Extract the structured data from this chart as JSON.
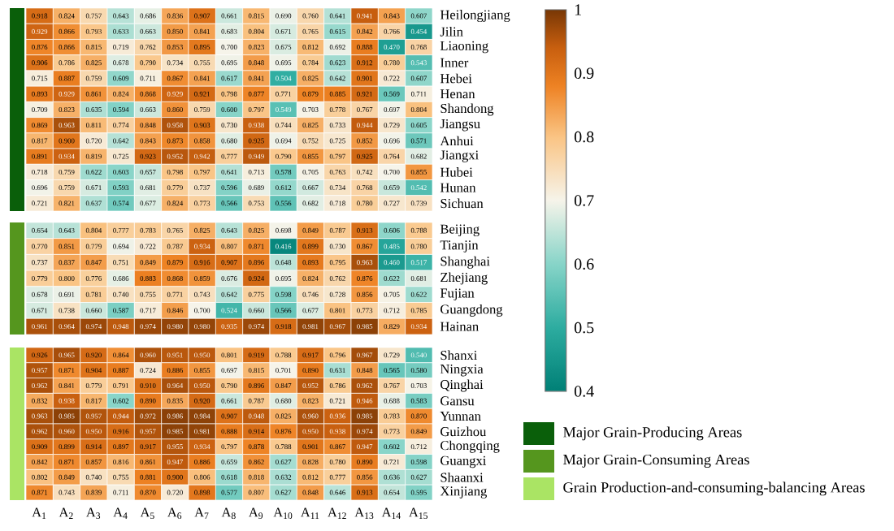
{
  "chart_data": [
    {
      "type": "heatmap",
      "categories": [
        null,
        null,
        null,
        null,
        null,
        null,
        null,
        null,
        null,
        null,
        null,
        null,
        null,
        null,
        null
      ],
      "y_categories": [
        "Heilongjiang",
        "Jilin",
        "Liaoning",
        "Inner",
        "Hebei",
        "Henan",
        "Shandong",
        "Jiangsu",
        "Anhui",
        "Jiangxi",
        "Hubei",
        "Hunan",
        "Sichuan"
      ],
      "cells": [
        [
          0.918,
          0.824,
          0.757,
          0.643,
          0.686,
          0.836,
          0.907,
          0.661,
          0.815,
          0.69,
          0.76,
          0.641,
          0.941,
          0.843,
          0.607
        ],
        [
          0.929,
          0.866,
          0.793,
          0.633,
          0.663,
          0.85,
          0.841,
          0.683,
          0.804,
          0.671,
          0.765,
          0.615,
          0.842,
          0.766,
          0.454
        ],
        [
          0.876,
          0.866,
          0.815,
          0.719,
          0.762,
          0.853,
          0.895,
          0.7,
          0.823,
          0.675,
          0.812,
          0.692,
          0.888,
          0.47,
          0.768
        ],
        [
          0.906,
          0.786,
          0.825,
          0.678,
          0.79,
          0.734,
          0.755,
          0.695,
          0.848,
          0.695,
          0.784,
          0.623,
          0.912,
          0.78,
          0.543
        ],
        [
          0.715,
          0.887,
          0.759,
          0.609,
          0.711,
          0.867,
          0.841,
          0.617,
          0.841,
          0.504,
          0.825,
          0.642,
          0.901,
          0.722,
          0.607
        ],
        [
          0.893,
          0.929,
          0.861,
          0.824,
          0.868,
          0.929,
          0.921,
          0.798,
          0.877,
          0.771,
          0.879,
          0.885,
          0.921,
          0.569,
          0.711
        ],
        [
          0.709,
          0.823,
          0.635,
          0.594,
          0.663,
          0.86,
          0.759,
          0.6,
          0.797,
          0.549,
          0.703,
          0.778,
          0.767,
          0.697,
          0.804
        ],
        [
          0.869,
          0.963,
          0.811,
          0.774,
          0.848,
          0.958,
          0.903,
          0.73,
          0.938,
          0.744,
          0.825,
          0.733,
          0.944,
          0.729,
          0.605
        ],
        [
          0.817,
          0.9,
          0.72,
          0.642,
          0.843,
          0.873,
          0.858,
          0.68,
          0.925,
          0.694,
          0.752,
          0.725,
          0.852,
          0.696,
          0.571
        ],
        [
          0.891,
          0.934,
          0.819,
          0.725,
          0.923,
          0.952,
          0.942,
          0.777,
          0.949,
          0.79,
          0.855,
          0.797,
          0.925,
          0.764,
          0.682
        ],
        [
          0.718,
          0.759,
          0.622,
          0.603,
          0.657,
          0.798,
          0.797,
          0.641,
          0.713,
          0.578,
          0.705,
          0.763,
          0.742,
          0.7,
          0.855
        ],
        [
          0.696,
          0.759,
          0.671,
          0.593,
          0.681,
          0.779,
          0.737,
          0.596,
          0.689,
          0.612,
          0.667,
          0.734,
          0.768,
          0.659,
          0.542
        ],
        [
          0.721,
          0.821,
          0.637,
          0.574,
          0.677,
          0.824,
          0.773,
          0.566,
          0.753,
          0.556,
          0.682,
          0.718,
          0.78,
          0.727,
          0.739
        ]
      ],
      "cell_labels": [
        [
          "0.918",
          "0.824",
          "0.757",
          "0.643",
          "0.686",
          "0.836",
          "0.907",
          "0.661",
          "0.815",
          "0.690",
          "0.760",
          "0.641",
          "0.941",
          "0.843",
          "0.607"
        ],
        [
          "0.929",
          "0.866",
          "0.793",
          "0.633",
          "0.663",
          "0.850",
          "0.841",
          "0.683",
          "0.804",
          "0.671",
          "0.765",
          "0.615",
          "0.842",
          "0.766",
          "0.454"
        ],
        [
          "0.876",
          "0.866",
          "0.815",
          "0.719",
          "0.762",
          "0.853",
          "0.895",
          "0.700",
          "0.823",
          "0.675",
          "0.812",
          "0.692",
          "0.888",
          "0.470",
          "0.768"
        ],
        [
          "0.906",
          "0.786",
          "0.825",
          "0.678",
          "0.790",
          "0.734",
          "0.755",
          "0.695",
          "0.848",
          "0.695",
          "0.784",
          "0.623",
          "0.912",
          "0.780",
          "0.543"
        ],
        [
          "0.715",
          "0.887",
          "0.759",
          "0.609",
          "0.711",
          "0.867",
          "0.841",
          "0.617",
          "0.841",
          "0.504",
          "0.825",
          "0.642",
          "0.901",
          "0.722",
          "0.607"
        ],
        [
          "0.893",
          "0.929",
          "0.861",
          "0.824",
          "0.868",
          "0.929",
          "0.921",
          "0.798",
          "0.877",
          "0.771",
          "0.879",
          "0.885",
          "0.921",
          "0.569",
          "0.711"
        ],
        [
          "0.709",
          "0.823",
          "0.635",
          "0.594",
          "0.663",
          "0.860",
          "0.759",
          "0.600",
          "0.797",
          "0.549",
          "0.703",
          "0.778",
          "0.767",
          "0.697",
          "0.804"
        ],
        [
          "0.869",
          "0.963",
          "0.811",
          "0.774",
          "0.848",
          "0.958",
          "0.903",
          "0.730",
          "0.938",
          "0.744",
          "0.825",
          "0.733",
          "0.944",
          "0.729",
          "0.605"
        ],
        [
          "0.817",
          "0.900",
          "0.720",
          "0.642",
          "0.843",
          "0.873",
          "0.858",
          "0.680",
          "0.925",
          "0.694",
          "0.752",
          "0.725",
          "0.852",
          "0.696",
          "0.571"
        ],
        [
          "0.891",
          "0.934",
          "0.819",
          "0.725",
          "0.923",
          "0.952",
          "0.942",
          "0.777",
          "0.949",
          "0.790",
          "0.855",
          "0.797",
          "0.925",
          "0.764",
          "0.682"
        ],
        [
          "0.718",
          "0.759",
          "0.622",
          "0.603",
          "0.657",
          "0.798",
          "0.797",
          "0.641",
          "0.713",
          "0.578",
          "0.705",
          "0.763",
          "0.742",
          "0.700",
          "0.855"
        ],
        [
          "0.696",
          "0.759",
          "0.671",
          "0.593",
          "0.681",
          "0.779",
          "0.737",
          "0.596",
          "0.689",
          "0.612",
          "0.667",
          "0.734",
          "0.768",
          "0.659",
          "0.542"
        ],
        [
          "0.721",
          "0.821",
          "0.637",
          "0.574",
          "0.677",
          "0.824",
          "0.773",
          "0.566",
          "0.753",
          "0.556",
          "0.682",
          "0.718",
          "0.780",
          "0.727",
          "0.739"
        ]
      ],
      "clim": [
        0.4,
        1
      ],
      "cticks": [
        0.4,
        0.5,
        0.6,
        0.7,
        0.8,
        0.9,
        1
      ],
      "data_labels": true,
      "tick_labels": "y",
      "annotations": [
        "Major Grain-Producing Areas"
      ]
    },
    {
      "type": "heatmap",
      "categories": [
        null,
        null,
        null,
        null,
        null,
        null,
        null,
        null,
        null,
        null,
        null,
        null,
        null,
        null,
        null
      ],
      "y_categories": [
        "Beijing",
        "Tianjin",
        "Shanghai",
        "Zhejiang",
        "Fujian",
        "Guangdong",
        "Hainan"
      ],
      "cells": [
        [
          0.654,
          0.643,
          0.804,
          0.777,
          0.783,
          0.765,
          0.825,
          0.643,
          0.825,
          0.698,
          0.849,
          0.787,
          0.913,
          0.606,
          0.788
        ],
        [
          0.77,
          0.851,
          0.779,
          0.694,
          0.722,
          0.787,
          0.934,
          0.807,
          0.871,
          0.416,
          0.899,
          0.73,
          0.867,
          0.485,
          0.78
        ],
        [
          0.737,
          0.837,
          0.847,
          0.751,
          0.849,
          0.879,
          0.916,
          0.907,
          0.896,
          0.648,
          0.893,
          0.795,
          0.963,
          0.46,
          0.517
        ],
        [
          0.779,
          0.8,
          0.776,
          0.686,
          0.883,
          0.868,
          0.859,
          0.676,
          0.924,
          0.695,
          0.824,
          0.762,
          0.876,
          0.622,
          0.681
        ],
        [
          0.678,
          0.691,
          0.781,
          0.74,
          0.755,
          0.771,
          0.743,
          0.642,
          0.775,
          0.598,
          0.746,
          0.728,
          0.856,
          0.705,
          0.622
        ],
        [
          0.671,
          0.738,
          0.66,
          0.587,
          0.717,
          0.846,
          0.7,
          0.524,
          0.66,
          0.566,
          0.677,
          0.801,
          0.773,
          0.712,
          0.785
        ],
        [
          0.961,
          0.964,
          0.974,
          0.948,
          0.974,
          0.98,
          0.98,
          0.935,
          0.974,
          0.918,
          0.981,
          0.967,
          0.985,
          0.829,
          0.934
        ]
      ],
      "cell_labels": [
        [
          "0.654",
          "0.643",
          "0.804",
          "0.777",
          "0.783",
          "0.765",
          "0.825",
          "0.643",
          "0.825",
          "0.698",
          "0.849",
          "0.787",
          "0.913",
          "0.606",
          "0.788"
        ],
        [
          "0.770",
          "0.851",
          "0.779",
          "0.694",
          "0.722",
          "0.787",
          "0.934",
          "0.807",
          "0.871",
          "0.416",
          "0.899",
          "0.730",
          "0.867",
          "0.485",
          "0.780"
        ],
        [
          "0.737",
          "0.837",
          "0.847",
          "0.751",
          "0.849",
          "0.879",
          "0.916",
          "0.907",
          "0.896",
          "0.648",
          "0.893",
          "0.795",
          "0.963",
          "0.460",
          "0.517"
        ],
        [
          "0.779",
          "0.800",
          "0.776",
          "0.686",
          "0.883",
          "0.868",
          "0.859",
          "0.676",
          "0.924",
          "0.695",
          "0.824",
          "0.762",
          "0.876",
          "0.622",
          "0.681"
        ],
        [
          "0.678",
          "0.691",
          "0.781",
          "0.740",
          "0.755",
          "0.771",
          "0.743",
          "0.642",
          "0.775",
          "0.598",
          "0.746",
          "0.728",
          "0.856",
          "0.705",
          "0.622"
        ],
        [
          "0.671",
          "0.738",
          "0.660",
          "0.587",
          "0.717",
          "0.846",
          "0.700",
          "0.524",
          "0.660",
          "0.566",
          "0.677",
          "0.801",
          "0.773",
          "0.712",
          "0.785"
        ],
        [
          "0.961",
          "0.964",
          "0.974",
          "0.948",
          "0.974",
          "0.980",
          "0.980",
          "0.935",
          "0.974",
          "0.918",
          "0.981",
          "0.967",
          "0.985",
          "0.829",
          "0.934"
        ]
      ],
      "data_labels": true,
      "tick_labels": "y",
      "annotations": [
        "Major Grain-Consuming Areas"
      ]
    },
    {
      "type": "heatmap",
      "categories": [
        "A$_{1}$",
        "A$_{2}$",
        "A$_{3}$",
        "A$_{4}$",
        "A$_{5}$",
        "A$_{6}$",
        "A$_{7}$",
        "A$_{8}$",
        "A$_{9}$",
        "A$_{10}$",
        "A$_{11}$",
        "A$_{12}$",
        "A$_{13}$",
        "A$_{14}$",
        "A$_{15}$"
      ],
      "y_categories": [
        "Shanxi",
        "Ningxia",
        "Qinghai",
        "Gansu",
        "Yunnan",
        "Guizhou",
        "Chongqing",
        "Guangxi",
        "Shaanxi",
        "Xinjiang"
      ],
      "cells": [
        [
          0.926,
          0.965,
          0.92,
          0.864,
          0.96,
          0.951,
          0.95,
          0.801,
          0.919,
          0.788,
          0.917,
          0.796,
          0.967,
          0.729,
          0.54
        ],
        [
          0.957,
          0.871,
          0.904,
          0.887,
          0.724,
          0.886,
          0.855,
          0.697,
          0.815,
          0.701,
          0.89,
          0.631,
          0.848,
          0.565,
          0.58
        ],
        [
          0.962,
          0.841,
          0.779,
          0.791,
          0.91,
          0.964,
          0.95,
          0.79,
          0.896,
          0.847,
          0.952,
          0.786,
          0.962,
          0.767,
          0.703
        ],
        [
          0.832,
          0.938,
          0.817,
          0.602,
          0.89,
          0.835,
          0.92,
          0.661,
          0.787,
          0.68,
          0.823,
          0.721,
          0.946,
          0.688,
          0.583
        ],
        [
          0.963,
          0.985,
          0.957,
          0.944,
          0.972,
          0.986,
          0.984,
          0.907,
          0.948,
          0.825,
          0.96,
          0.936,
          0.985,
          0.783,
          0.87
        ],
        [
          0.962,
          0.96,
          0.95,
          0.916,
          0.957,
          0.985,
          0.981,
          0.888,
          0.914,
          0.876,
          0.95,
          0.938,
          0.974,
          0.773,
          0.849
        ],
        [
          0.909,
          0.899,
          0.914,
          0.897,
          0.917,
          0.955,
          0.934,
          0.797,
          0.878,
          0.788,
          0.901,
          0.867,
          0.947,
          0.602,
          0.712
        ],
        [
          0.842,
          0.871,
          0.857,
          0.816,
          0.861,
          0.947,
          0.886,
          0.659,
          0.862,
          0.627,
          0.828,
          0.78,
          0.89,
          0.721,
          0.598
        ],
        [
          0.802,
          0.849,
          0.74,
          0.755,
          0.881,
          0.9,
          0.806,
          0.618,
          0.818,
          0.632,
          0.812,
          0.777,
          0.856,
          0.636,
          0.627
        ],
        [
          0.871,
          0.743,
          0.839,
          0.711,
          0.87,
          0.72,
          0.898,
          0.577,
          0.807,
          0.627,
          0.848,
          0.646,
          0.913,
          0.654,
          0.595
        ]
      ],
      "cell_labels": [
        [
          "0.926",
          "0.965",
          "0.920",
          "0.864",
          "0.960",
          "0.951",
          "0.950",
          "0.801",
          "0.919",
          "0.788",
          "0.917",
          "0.796",
          "0.967",
          "0.729",
          "0.540"
        ],
        [
          "0.957",
          "0.871",
          "0.904",
          "0.887",
          "0.724",
          "0.886",
          "0.855",
          "0.697",
          "0.815",
          "0.701",
          "0.890",
          "0.631",
          "0.848",
          "0.565",
          "0.580"
        ],
        [
          "0.962",
          "0.841",
          "0.779",
          "0.791",
          "0.910",
          "0.964",
          "0.950",
          "0.790",
          "0.896",
          "0.847",
          "0.952",
          "0.786",
          "0.962",
          "0.767",
          "0.703"
        ],
        [
          "0.832",
          "0.938",
          "0.817",
          "0.602",
          "0.890",
          "0.835",
          "0.920",
          "0.661",
          "0.787",
          "0.680",
          "0.823",
          "0.721",
          "0.946",
          "0.688",
          "0.583"
        ],
        [
          "0.963",
          "0.985",
          "0.957",
          "0.944",
          "0.972",
          "0.986",
          "0.984",
          "0.907",
          "0.948",
          "0.825",
          "0.960",
          "0.936",
          "0.985",
          "0.783",
          "0.870"
        ],
        [
          "0.962",
          "0.960",
          "0.950",
          "0.916",
          "0.957",
          "0.985",
          "0.981",
          "0.888",
          "0.914",
          "0.876",
          "0.950",
          "0.938",
          "0.974",
          "0.773",
          "0.849"
        ],
        [
          "0.909",
          "0.899",
          "0.914",
          "0.897",
          "0.917",
          "0.955",
          "0.934",
          "0.797",
          "0.878",
          "0.788",
          "0.901",
          "0.867",
          "0.947",
          "0.602",
          "0.712"
        ],
        [
          "0.842",
          "0.871",
          "0.857",
          "0.816",
          "0.861",
          "0.947",
          "0.886",
          "0.659",
          "0.862",
          "0.627",
          "0.828",
          "0.780",
          "0.890",
          "0.721",
          "0.598"
        ],
        [
          "0.802",
          "0.849",
          "0.740",
          "0.755",
          "0.881",
          "0.900",
          "0.806",
          "0.618",
          "0.818",
          "0.632",
          "0.812",
          "0.777",
          "0.856",
          "0.636",
          "0.627"
        ],
        [
          "0.871",
          "0.743",
          "0.839",
          "0.711",
          "0.870",
          "0.720",
          "0.898",
          "0.577",
          "0.807",
          "0.627",
          "0.848",
          "0.646",
          "0.913",
          "0.654",
          "0.595"
        ]
      ],
      "data_labels": true,
      "annotations": [
        "Grain Production-and-consuming-balancing Areas"
      ]
    }
  ]
}
